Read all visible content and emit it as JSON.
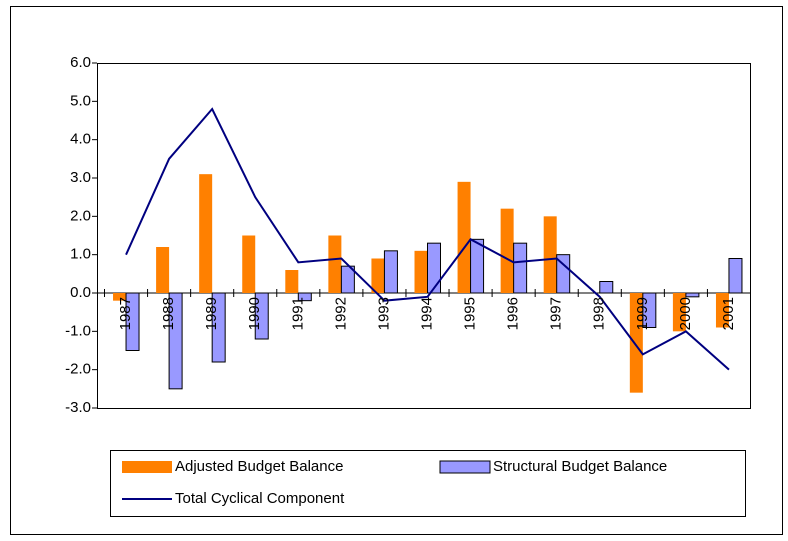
{
  "chart_data": {
    "type": "bar",
    "categories": [
      "1987",
      "1988",
      "1989",
      "1990",
      "1991",
      "1992",
      "1993",
      "1994",
      "1995",
      "1996",
      "1997",
      "1998",
      "1999",
      "2000",
      "2001"
    ],
    "series": [
      {
        "name": "Adjusted Budget Balance",
        "color": "#ff8000",
        "type": "bar",
        "values": [
          -0.2,
          1.2,
          3.1,
          1.5,
          0.6,
          1.5,
          0.9,
          1.1,
          2.9,
          2.2,
          2.0,
          0,
          -2.6,
          -1.0,
          -0.9
        ]
      },
      {
        "name": "Structural Budget Balance",
        "color": "#9999ff",
        "type": "bar",
        "values": [
          -1.5,
          -2.5,
          -1.8,
          -1.2,
          -0.2,
          0.7,
          1.1,
          1.3,
          1.4,
          1.3,
          1.0,
          0.3,
          -0.9,
          -0.1,
          0.9
        ]
      },
      {
        "name": "Total Cyclical Component",
        "color": "#000080",
        "type": "line",
        "values": [
          1.0,
          3.5,
          4.8,
          2.5,
          0.8,
          0.9,
          -0.2,
          -0.1,
          1.4,
          0.8,
          0.9,
          -0.1,
          -1.6,
          -1.0,
          -2.0
        ]
      }
    ],
    "ylim": [
      -3,
      6
    ],
    "yticks": [
      {
        "value": -3,
        "label": "-3.0"
      },
      {
        "value": -2,
        "label": "-2.0"
      },
      {
        "value": -1,
        "label": "-1.0"
      },
      {
        "value": 0,
        "label": "0.0"
      },
      {
        "value": 1,
        "label": "1.0"
      },
      {
        "value": 2,
        "label": "2.0"
      },
      {
        "value": 3,
        "label": "3.0"
      },
      {
        "value": 4,
        "label": "4.0"
      },
      {
        "value": 5,
        "label": "5.0"
      },
      {
        "value": 6,
        "label": "6.0"
      }
    ],
    "legend": "bottom"
  }
}
